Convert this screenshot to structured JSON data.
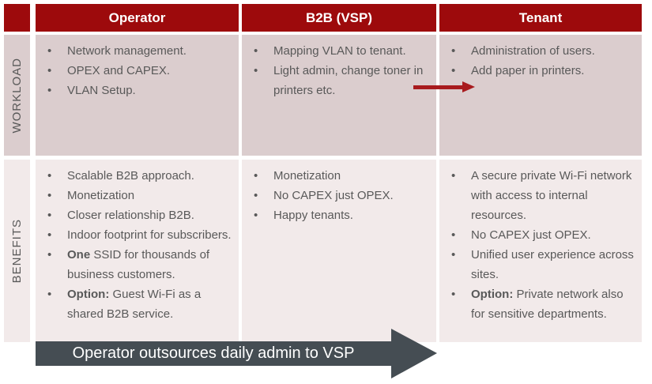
{
  "colors": {
    "header_red": "#9D0A0C",
    "workload_bg": "#DBCDCE",
    "benefits_bg": "#F2EAEA",
    "text": "#595959",
    "header_text": "#FFFFFF",
    "red_arrow": "#A81B1E",
    "bottom_arrow_bg": "#454D53",
    "bottom_arrow_text": "#FFFFFF"
  },
  "header": {
    "columns": [
      "Operator",
      "B2B (VSP)",
      "Tenant"
    ]
  },
  "rows": [
    {
      "label": "WORKLOAD",
      "cells": [
        {
          "items": [
            {
              "b": "",
              "t": "Network management."
            },
            {
              "b": "",
              "t": "OPEX and CAPEX."
            },
            {
              "b": "",
              "t": "VLAN Setup."
            }
          ]
        },
        {
          "items": [
            {
              "b": "",
              "t": "Mapping VLAN to tenant."
            },
            {
              "b": "",
              "t": "Light admin, change toner in printers etc."
            }
          ]
        },
        {
          "items": [
            {
              "b": "",
              "t": "Administration of users."
            },
            {
              "b": "",
              "t": "Add paper in printers."
            }
          ]
        }
      ]
    },
    {
      "label": "BENEFITS",
      "cells": [
        {
          "items": [
            {
              "b": "",
              "t": "Scalable B2B approach."
            },
            {
              "b": "",
              "t": "Monetization"
            },
            {
              "b": "",
              "t": "Closer relationship B2B."
            },
            {
              "b": "",
              "t": "Indoor footprint for subscribers."
            },
            {
              "b": "One",
              "t": " SSID for thousands of business customers."
            },
            {
              "b": "Option:",
              "t": " Guest Wi-Fi as a shared B2B service."
            }
          ]
        },
        {
          "items": [
            {
              "b": "",
              "t": "Monetization"
            },
            {
              "b": "",
              "t": "No CAPEX just OPEX."
            },
            {
              "b": "",
              "t": "Happy tenants."
            }
          ]
        },
        {
          "items": [
            {
              "b": "",
              "t": "A secure private Wi-Fi network with access to internal resources."
            },
            {
              "b": "",
              "t": "No CAPEX just OPEX."
            },
            {
              "b": "",
              "t": "Unified user experience across sites."
            },
            {
              "b": "Option:",
              "t": " Private network also for sensitive departments."
            }
          ]
        }
      ]
    }
  ],
  "red_arrow": {
    "icon": "arrow-right-icon"
  },
  "bottom_arrow": {
    "label": "Operator outsources daily admin to VSP"
  }
}
